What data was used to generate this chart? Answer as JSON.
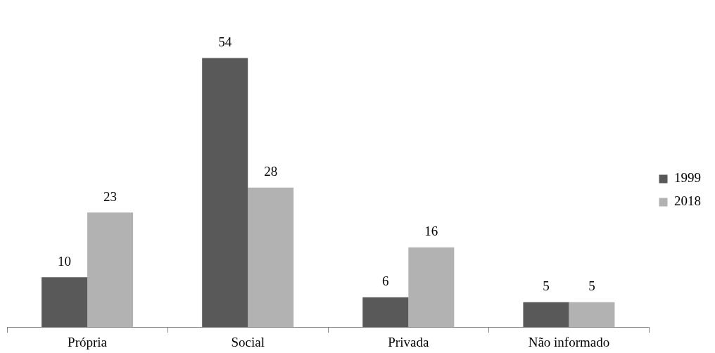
{
  "chart_data": {
    "type": "bar",
    "categories": [
      "Própria",
      "Social",
      "Privada",
      "Não informado"
    ],
    "series": [
      {
        "name": "1999",
        "color": "#595959",
        "values": [
          10,
          54,
          6,
          5
        ]
      },
      {
        "name": "2018",
        "color": "#b2b2b2",
        "values": [
          23,
          28,
          16,
          5
        ]
      }
    ],
    "data_labels": true,
    "legend": "right",
    "grid": false
  }
}
